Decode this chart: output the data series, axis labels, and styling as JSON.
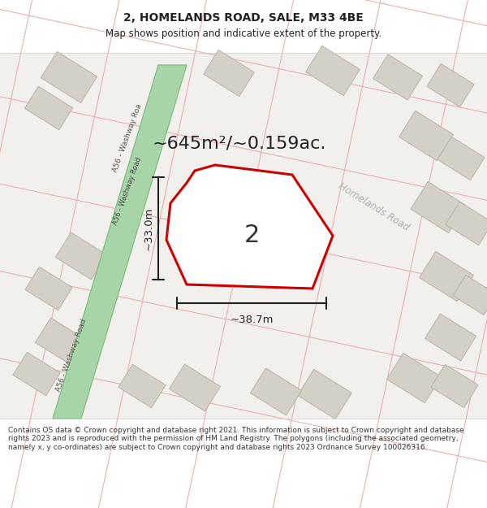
{
  "title": "2, HOMELANDS ROAD, SALE, M33 4BE",
  "subtitle": "Map shows position and indicative extent of the property.",
  "area_label": "~645m²/~0.159ac.",
  "plot_number": "2",
  "width_label": "~38.7m",
  "height_label": "~33.0m",
  "road_label_a56_bottom": "A56 - Washway Road",
  "road_label_a56_top": "A56 - Washway Roa",
  "road_label_homelands": "Homelands Road",
  "copyright_text": "Contains OS data © Crown copyright and database right 2021. This information is subject to Crown copyright and database rights 2023 and is reproduced with the permission of HM Land Registry. The polygons (including the associated geometry, namely x, y co-ordinates) are subject to Crown copyright and database rights 2023 Ordnance Survey 100026316.",
  "map_bg": "#f2f0ed",
  "road_green_color": "#a8d5a8",
  "road_green_edge": "#7ab87a",
  "building_fill": "#d4d0c8",
  "building_edge": "#b8b4ac",
  "street_color": "#e8b0b0",
  "plot_color": "#cc0000",
  "dim_color": "#222222",
  "text_dark": "#222222",
  "road_text_color": "#b0b0b0",
  "white": "#ffffff",
  "title_fontsize": 10,
  "subtitle_fontsize": 8.5,
  "area_fontsize": 16,
  "plot_num_fontsize": 22,
  "dim_fontsize": 9.5,
  "road_fontsize": 8.5,
  "copy_fontsize": 6.5
}
